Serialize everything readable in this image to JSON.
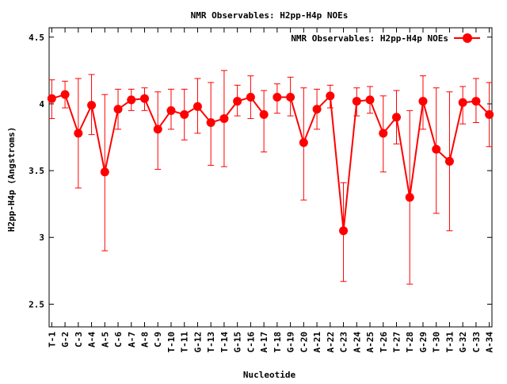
{
  "chart_data": {
    "type": "line",
    "title": "NMR Observables: H2pp-H4p NOEs",
    "xlabel": "Nucleotide",
    "ylabel": "H2pp-H4p (Angstroms)",
    "ylim": [
      2.33,
      4.57
    ],
    "yticks": [
      "2.5",
      "3",
      "3.5",
      "4",
      "4.5"
    ],
    "yticks_values": [
      2.5,
      3,
      3.5,
      4,
      4.5
    ],
    "grid": false,
    "legend_position": "top-right",
    "color": "#ff0000",
    "categories": [
      "T-1",
      "G-2",
      "C-3",
      "A-4",
      "A-5",
      "C-6",
      "A-7",
      "A-8",
      "C-9",
      "T-10",
      "T-11",
      "G-12",
      "T-13",
      "T-14",
      "G-15",
      "C-16",
      "A-17",
      "T-18",
      "G-19",
      "C-20",
      "A-21",
      "A-22",
      "C-23",
      "A-24",
      "A-25",
      "T-26",
      "T-27",
      "T-28",
      "G-29",
      "T-30",
      "T-31",
      "G-32",
      "C-33",
      "A-34"
    ],
    "series": [
      {
        "name": "NMR Observables: H2pp-H4p NOEs",
        "segments": [
          {
            "indices": [
              1,
              2,
              3,
              4,
              5,
              6,
              7,
              8,
              9,
              10,
              11,
              12,
              13,
              14,
              15,
              16,
              17
            ],
            "values": [
              4.04,
              4.07,
              3.78,
              3.99,
              3.49,
              3.96,
              4.03,
              4.04,
              3.81,
              3.95,
              3.92,
              3.98,
              3.86,
              3.89,
              4.02,
              4.05,
              3.92
            ],
            "err_low": [
              3.89,
              3.97,
              3.37,
              3.77,
              2.9,
              3.81,
              3.95,
              3.95,
              3.51,
              3.81,
              3.73,
              3.78,
              3.54,
              3.53,
              3.91,
              3.89,
              3.64
            ],
            "err_high": [
              4.18,
              4.17,
              4.19,
              4.22,
              4.07,
              4.11,
              4.11,
              4.12,
              4.09,
              4.11,
              4.11,
              4.19,
              4.16,
              4.25,
              4.14,
              4.21,
              4.1
            ]
          },
          {
            "indices": [
              18,
              19,
              20,
              21,
              22,
              23,
              24,
              25,
              26,
              27,
              28,
              29,
              30,
              31,
              32,
              33,
              34
            ],
            "values": [
              4.05,
              4.05,
              3.71,
              3.96,
              4.06,
              3.05,
              4.02,
              4.03,
              3.78,
              3.9,
              3.3,
              4.02,
              3.66,
              3.57,
              4.01,
              4.02,
              3.92
            ],
            "err_low": [
              3.93,
              3.91,
              3.28,
              3.81,
              3.97,
              2.67,
              3.91,
              3.93,
              3.49,
              3.7,
              2.65,
              3.81,
              3.18,
              3.05,
              3.85,
              3.86,
              3.68
            ],
            "err_high": [
              4.15,
              4.2,
              4.12,
              4.11,
              4.14,
              3.41,
              4.12,
              4.13,
              4.06,
              4.1,
              3.95,
              4.21,
              4.12,
              4.09,
              4.13,
              4.19,
              4.16
            ]
          }
        ]
      }
    ]
  }
}
